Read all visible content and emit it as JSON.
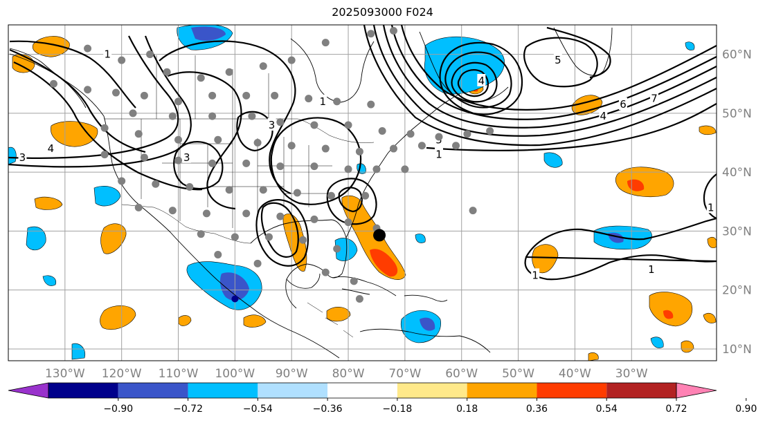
{
  "title": "2025093000 F024",
  "map": {
    "lon_range": [
      -140,
      -15
    ],
    "lat_range": [
      8,
      65
    ],
    "lon_ticks": [
      {
        "value": -130,
        "label": "130°W"
      },
      {
        "value": -120,
        "label": "120°W"
      },
      {
        "value": -110,
        "label": "110°W"
      },
      {
        "value": -100,
        "label": "100°W"
      },
      {
        "value": -90,
        "label": "90°W"
      },
      {
        "value": -80,
        "label": "80°W"
      },
      {
        "value": -70,
        "label": "70°W"
      },
      {
        "value": -60,
        "label": "60°W"
      },
      {
        "value": -50,
        "label": "50°W"
      },
      {
        "value": -40,
        "label": "40°W"
      },
      {
        "value": -30,
        "label": "30°W"
      }
    ],
    "lat_ticks": [
      {
        "value": 60,
        "label": "60°N"
      },
      {
        "value": 50,
        "label": "50°N"
      },
      {
        "value": 40,
        "label": "40°N"
      },
      {
        "value": 30,
        "label": "30°N"
      },
      {
        "value": 20,
        "label": "20°N"
      },
      {
        "value": 10,
        "label": "10°N"
      }
    ],
    "grid": true,
    "colors": {
      "land_line": "#000000",
      "grid_line": "#a0a0a0",
      "contour": "#000000",
      "dot": "#808080"
    }
  },
  "colorbar": {
    "colors": [
      "#9932cc",
      "#00008b",
      "#3a55c9",
      "#00bfff",
      "#b0e0ff",
      "#ffffff",
      "#ffe98a",
      "#ffa500",
      "#ff3c00",
      "#b22222",
      "#ff82b4"
    ],
    "labels": [
      "−0.90",
      "−0.72",
      "−0.54",
      "−0.36",
      "−0.18",
      "0.18",
      "0.36",
      "0.54",
      "0.72",
      "0.90"
    ]
  },
  "contours": [
    {
      "label": "1",
      "lon": -84.5,
      "lat": 52
    },
    {
      "label": "3",
      "lon": -93.5,
      "lat": 48
    },
    {
      "label": "3",
      "lon": -108.5,
      "lat": 42.5
    },
    {
      "label": "3",
      "lon": -137.5,
      "lat": 42.5
    },
    {
      "label": "4",
      "lon": -132.5,
      "lat": 44
    },
    {
      "label": "1",
      "lon": -122.5,
      "lat": 60
    },
    {
      "label": "5",
      "lon": -64,
      "lat": 45.5
    },
    {
      "label": "1",
      "lon": -64,
      "lat": 43
    },
    {
      "label": "4",
      "lon": -35,
      "lat": 49.5
    },
    {
      "label": "6",
      "lon": -31.5,
      "lat": 51.5
    },
    {
      "label": "7",
      "lon": -26,
      "lat": 52.5
    },
    {
      "label": "4",
      "lon": -56.5,
      "lat": 55.5
    },
    {
      "label": "5",
      "lon": -43,
      "lat": 59
    },
    {
      "label": "1",
      "lon": -47,
      "lat": 22.5
    },
    {
      "label": "1",
      "lon": -26.5,
      "lat": 23.5
    },
    {
      "label": "1",
      "lon": -16,
      "lat": 34
    }
  ],
  "stations": [
    [
      -126,
      61
    ],
    [
      -120,
      59
    ],
    [
      -115,
      60
    ],
    [
      -112,
      57
    ],
    [
      -106,
      56
    ],
    [
      -101,
      57
    ],
    [
      -95,
      58
    ],
    [
      -90,
      59
    ],
    [
      -84,
      62
    ],
    [
      -76,
      63.5
    ],
    [
      -72,
      64
    ],
    [
      -132,
      55
    ],
    [
      -126,
      54
    ],
    [
      -121,
      53.5
    ],
    [
      -116,
      53
    ],
    [
      -110,
      52
    ],
    [
      -104,
      53
    ],
    [
      -98,
      53
    ],
    [
      -93,
      53
    ],
    [
      -87,
      52.5
    ],
    [
      -82,
      52
    ],
    [
      -76,
      51.5
    ],
    [
      -118,
      50
    ],
    [
      -111,
      49.5
    ],
    [
      -104,
      49.5
    ],
    [
      -97,
      49.5
    ],
    [
      -92,
      48.5
    ],
    [
      -86,
      48
    ],
    [
      -80,
      48
    ],
    [
      -74,
      47
    ],
    [
      -69,
      46.5
    ],
    [
      -64,
      46
    ],
    [
      -59,
      46.5
    ],
    [
      -55,
      47
    ],
    [
      -123,
      47.5
    ],
    [
      -117,
      46.5
    ],
    [
      -110,
      45.5
    ],
    [
      -103,
      45.5
    ],
    [
      -96,
      45
    ],
    [
      -90,
      44.5
    ],
    [
      -84,
      44
    ],
    [
      -78,
      43.5
    ],
    [
      -72,
      44
    ],
    [
      -67,
      44.5
    ],
    [
      -61,
      44.5
    ],
    [
      -123,
      43
    ],
    [
      -116,
      42.5
    ],
    [
      -110,
      42
    ],
    [
      -104,
      41.5
    ],
    [
      -98,
      41.5
    ],
    [
      -92,
      41
    ],
    [
      -86,
      41
    ],
    [
      -80,
      40.5
    ],
    [
      -75,
      40.5
    ],
    [
      -70,
      40.5
    ],
    [
      -120,
      38.5
    ],
    [
      -114,
      38
    ],
    [
      -108,
      37.5
    ],
    [
      -101,
      37
    ],
    [
      -95,
      37
    ],
    [
      -89,
      36.5
    ],
    [
      -83,
      36
    ],
    [
      -77,
      36
    ],
    [
      -117,
      34
    ],
    [
      -111,
      33.5
    ],
    [
      -105,
      33
    ],
    [
      -98,
      33
    ],
    [
      -92,
      32.5
    ],
    [
      -86,
      32
    ],
    [
      -80,
      31.5
    ],
    [
      -75,
      30.5
    ],
    [
      -106,
      29.5
    ],
    [
      -100,
      29
    ],
    [
      -94,
      29
    ],
    [
      -88,
      28.5
    ],
    [
      -82,
      27
    ],
    [
      -58,
      33.5
    ],
    [
      -103,
      26
    ],
    [
      -96,
      24.5
    ],
    [
      -84,
      23
    ],
    [
      -79,
      21.5
    ],
    [
      -78,
      18.5
    ]
  ],
  "features": {
    "tropical_cyclone_dot": {
      "lon": -74.5,
      "lat": 29.3
    },
    "small_dark_dot": {
      "lon": -100,
      "lat": 18.5
    }
  }
}
